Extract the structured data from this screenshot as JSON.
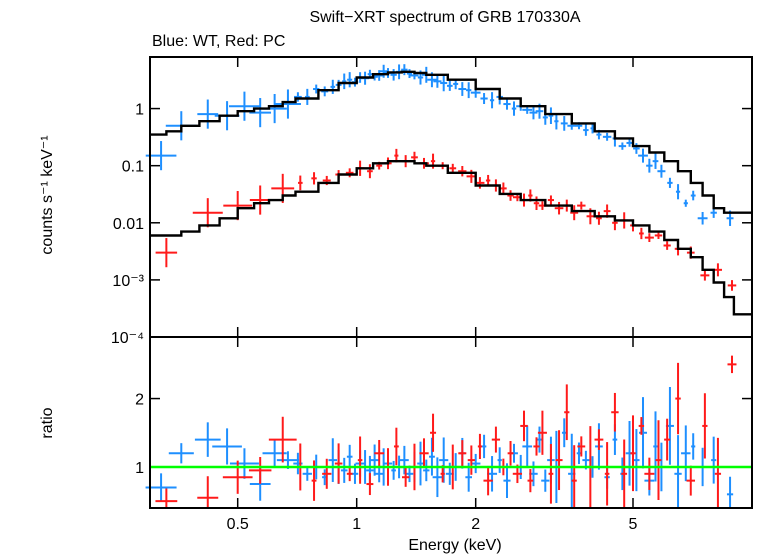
{
  "chart_data": {
    "type": "scatter",
    "title": "Swift−XRT spectrum of GRB 170330A",
    "subtitle": "Blue: WT, Red: PC",
    "xlabel": "Energy (keV)",
    "x_scale": "log",
    "xlim": [
      0.3,
      10
    ],
    "x_ticks": [
      "0.5",
      "1",
      "2",
      "5"
    ],
    "x_tick_values": [
      0.5,
      1,
      2,
      5
    ],
    "colors": {
      "wt": "#1e8fff",
      "pc": "#ff1a1a",
      "model": "#000000",
      "unity": "#00ff00"
    },
    "panels": [
      {
        "id": "spectrum",
        "ylabel": "counts s⁻¹ keV⁻¹",
        "y_scale": "log",
        "ylim": [
          0.0001,
          8
        ],
        "y_ticks": [
          "1",
          "0.1",
          "0.01",
          "10⁻³",
          "10⁻⁴"
        ],
        "y_tick_values": [
          1,
          0.1,
          0.01,
          0.001,
          0.0001
        ],
        "series": [
          {
            "key": "wt",
            "x": [
              0.32,
              0.36,
              0.42,
              0.47,
              0.52,
              0.57,
              0.62,
              0.67,
              0.71,
              0.75,
              0.79,
              0.83,
              0.87,
              0.9,
              0.93,
              0.96,
              0.99,
              1.02,
              1.05,
              1.08,
              1.11,
              1.14,
              1.17,
              1.2,
              1.24,
              1.28,
              1.32,
              1.36,
              1.4,
              1.45,
              1.5,
              1.55,
              1.6,
              1.66,
              1.72,
              1.78,
              1.85,
              1.92,
              2.0,
              2.1,
              2.2,
              2.3,
              2.4,
              2.5,
              2.6,
              2.7,
              2.8,
              2.9,
              3.0,
              3.1,
              3.2,
              3.35,
              3.5,
              3.65,
              3.8,
              3.95,
              4.1,
              4.3,
              4.5,
              4.7,
              4.9,
              5.1,
              5.3,
              5.5,
              5.7,
              5.9,
              6.2,
              6.5,
              6.8,
              7.1,
              7.5,
              8.0,
              8.8
            ],
            "y": [
              0.15,
              0.5,
              0.8,
              0.75,
              1.1,
              0.85,
              1.0,
              1.2,
              1.6,
              1.6,
              2.2,
              2.0,
              2.4,
              2.6,
              3.0,
              3.2,
              2.9,
              3.5,
              3.4,
              4.0,
              3.6,
              3.8,
              4.5,
              4.2,
              3.9,
              4.4,
              4.8,
              4.1,
              3.8,
              3.5,
              3.9,
              3.2,
              3.0,
              2.8,
              2.5,
              2.7,
              2.2,
              2.1,
              1.9,
              1.5,
              1.4,
              1.6,
              1.2,
              1.0,
              1.1,
              0.95,
              0.85,
              0.9,
              0.7,
              0.75,
              0.6,
              0.55,
              0.5,
              0.5,
              0.42,
              0.45,
              0.35,
              0.32,
              0.3,
              0.22,
              0.25,
              0.2,
              0.15,
              0.1,
              0.12,
              0.08,
              0.05,
              0.035,
              0.022,
              0.03,
              0.012,
              0.015,
              0.012
            ]
          },
          {
            "key": "pc",
            "x": [
              0.33,
              0.42,
              0.5,
              0.57,
              0.65,
              0.72,
              0.78,
              0.84,
              0.9,
              0.96,
              1.02,
              1.08,
              1.14,
              1.2,
              1.26,
              1.33,
              1.4,
              1.48,
              1.56,
              1.65,
              1.75,
              1.85,
              1.95,
              2.05,
              2.15,
              2.25,
              2.35,
              2.45,
              2.55,
              2.65,
              2.75,
              2.85,
              2.95,
              3.1,
              3.25,
              3.4,
              3.55,
              3.7,
              3.9,
              4.1,
              4.3,
              4.5,
              4.75,
              5.0,
              5.25,
              5.5,
              5.8,
              6.1,
              6.5,
              7.0,
              7.6,
              8.2,
              8.9
            ],
            "y": [
              0.003,
              0.015,
              0.02,
              0.025,
              0.04,
              0.05,
              0.06,
              0.055,
              0.07,
              0.075,
              0.09,
              0.08,
              0.1,
              0.11,
              0.15,
              0.12,
              0.14,
              0.11,
              0.12,
              0.1,
              0.09,
              0.08,
              0.065,
              0.05,
              0.055,
              0.045,
              0.04,
              0.03,
              0.028,
              0.025,
              0.03,
              0.022,
              0.02,
              0.025,
              0.018,
              0.02,
              0.015,
              0.02,
              0.013,
              0.012,
              0.016,
              0.01,
              0.011,
              0.009,
              0.0065,
              0.0055,
              0.006,
              0.004,
              0.0035,
              0.003,
              0.0012,
              0.0015,
              0.0008
            ]
          }
        ],
        "models": [
          {
            "key": "wt",
            "x": [
              0.3,
              0.33,
              0.36,
              0.4,
              0.45,
              0.5,
              0.55,
              0.6,
              0.65,
              0.7,
              0.8,
              0.9,
              1.0,
              1.1,
              1.2,
              1.3,
              1.4,
              1.5,
              1.7,
              2.0,
              2.3,
              2.6,
              3.0,
              3.5,
              4.0,
              4.5,
              5.0,
              5.5,
              6.0,
              6.5,
              7.0,
              7.5,
              8.0,
              8.5,
              10.0
            ],
            "y": [
              0.35,
              0.4,
              0.5,
              0.6,
              0.75,
              0.9,
              1.0,
              1.1,
              1.3,
              1.5,
              2.1,
              2.8,
              3.5,
              4.0,
              4.3,
              4.4,
              4.2,
              3.9,
              3.2,
              2.2,
              1.5,
              1.1,
              0.8,
              0.55,
              0.4,
              0.3,
              0.22,
              0.17,
              0.12,
              0.08,
              0.05,
              0.03,
              0.018,
              0.015,
              0.015
            ]
          },
          {
            "key": "pc",
            "x": [
              0.3,
              0.33,
              0.36,
              0.4,
              0.45,
              0.5,
              0.55,
              0.6,
              0.65,
              0.7,
              0.8,
              0.9,
              1.0,
              1.1,
              1.2,
              1.3,
              1.4,
              1.5,
              1.7,
              2.0,
              2.3,
              2.6,
              3.0,
              3.5,
              4.0,
              4.5,
              5.0,
              5.5,
              6.0,
              6.5,
              7.0,
              7.5,
              8.0,
              8.5,
              9.0,
              10.0
            ],
            "y": [
              0.006,
              0.006,
              0.007,
              0.009,
              0.012,
              0.018,
              0.022,
              0.025,
              0.03,
              0.035,
              0.05,
              0.07,
              0.09,
              0.11,
              0.12,
              0.12,
              0.11,
              0.1,
              0.075,
              0.045,
              0.032,
              0.025,
              0.02,
              0.016,
              0.013,
              0.011,
              0.009,
              0.007,
              0.005,
              0.0035,
              0.0025,
              0.0015,
              0.0009,
              0.0005,
              0.00025,
              0.0002
            ]
          }
        ]
      },
      {
        "id": "ratio",
        "ylabel": "ratio",
        "y_scale": "linear",
        "ylim": [
          0.4,
          2.9
        ],
        "y_ticks": [
          "1",
          "2"
        ],
        "y_tick_values": [
          1,
          2
        ],
        "unity_line": 1,
        "series": [
          {
            "key": "wt",
            "x": [
              0.32,
              0.36,
              0.42,
              0.47,
              0.52,
              0.57,
              0.62,
              0.67,
              0.71,
              0.75,
              0.79,
              0.83,
              0.87,
              0.9,
              0.93,
              0.96,
              0.99,
              1.02,
              1.05,
              1.08,
              1.11,
              1.14,
              1.17,
              1.2,
              1.24,
              1.28,
              1.32,
              1.36,
              1.4,
              1.45,
              1.5,
              1.55,
              1.6,
              1.66,
              1.72,
              1.78,
              1.85,
              1.92,
              2.0,
              2.1,
              2.2,
              2.3,
              2.4,
              2.5,
              2.6,
              2.7,
              2.8,
              2.9,
              3.0,
              3.1,
              3.2,
              3.35,
              3.5,
              3.65,
              3.8,
              3.95,
              4.1,
              4.3,
              4.5,
              4.7,
              4.9,
              5.1,
              5.3,
              5.5,
              5.7,
              5.9,
              6.2,
              6.5,
              6.8,
              7.1,
              7.5,
              8.0,
              8.8
            ],
            "y": [
              0.7,
              1.2,
              1.4,
              1.3,
              1.05,
              0.75,
              1.2,
              1.1,
              1.05,
              0.9,
              1.0,
              0.85,
              1.1,
              1.0,
              0.95,
              1.15,
              0.9,
              1.05,
              1.0,
              0.95,
              1.1,
              0.9,
              1.0,
              1.05,
              0.95,
              1.0,
              1.1,
              0.9,
              1.0,
              1.05,
              0.95,
              1.15,
              0.85,
              1.1,
              0.9,
              1.0,
              1.2,
              0.85,
              1.05,
              1.3,
              0.9,
              1.1,
              0.8,
              1.2,
              1.0,
              1.3,
              0.9,
              1.4,
              0.8,
              1.1,
              1.0,
              1.5,
              0.9,
              1.2,
              1.1,
              1.0,
              1.3,
              0.85,
              1.4,
              0.9,
              1.2,
              1.1,
              1.5,
              0.8,
              1.3,
              1.0,
              1.6,
              0.9,
              1.2,
              1.3,
              1.0,
              1.1,
              0.6
            ]
          },
          {
            "key": "pc",
            "x": [
              0.33,
              0.42,
              0.5,
              0.57,
              0.65,
              0.72,
              0.78,
              0.84,
              0.9,
              0.96,
              1.02,
              1.08,
              1.14,
              1.2,
              1.26,
              1.33,
              1.4,
              1.48,
              1.56,
              1.65,
              1.75,
              1.85,
              1.95,
              2.05,
              2.15,
              2.25,
              2.35,
              2.45,
              2.55,
              2.65,
              2.75,
              2.85,
              2.95,
              3.1,
              3.25,
              3.4,
              3.55,
              3.7,
              3.9,
              4.1,
              4.3,
              4.5,
              4.75,
              5.0,
              5.25,
              5.5,
              5.8,
              6.1,
              6.5,
              7.0,
              7.6,
              8.2,
              8.9
            ],
            "y": [
              0.5,
              0.55,
              0.85,
              0.95,
              1.4,
              1.0,
              0.8,
              0.9,
              1.05,
              0.9,
              1.1,
              0.75,
              1.2,
              1.0,
              1.3,
              0.85,
              1.0,
              1.2,
              1.5,
              0.9,
              1.0,
              1.2,
              1.1,
              1.3,
              0.8,
              1.4,
              1.0,
              1.2,
              0.9,
              1.6,
              0.8,
              1.3,
              1.5,
              0.9,
              1.1,
              1.8,
              0.8,
              1.3,
              1.0,
              1.4,
              0.9,
              1.8,
              0.9,
              1.2,
              1.6,
              0.9,
              1.1,
              1.4,
              2.0,
              0.8,
              1.6,
              0.9,
              2.5
            ]
          }
        ]
      }
    ]
  }
}
